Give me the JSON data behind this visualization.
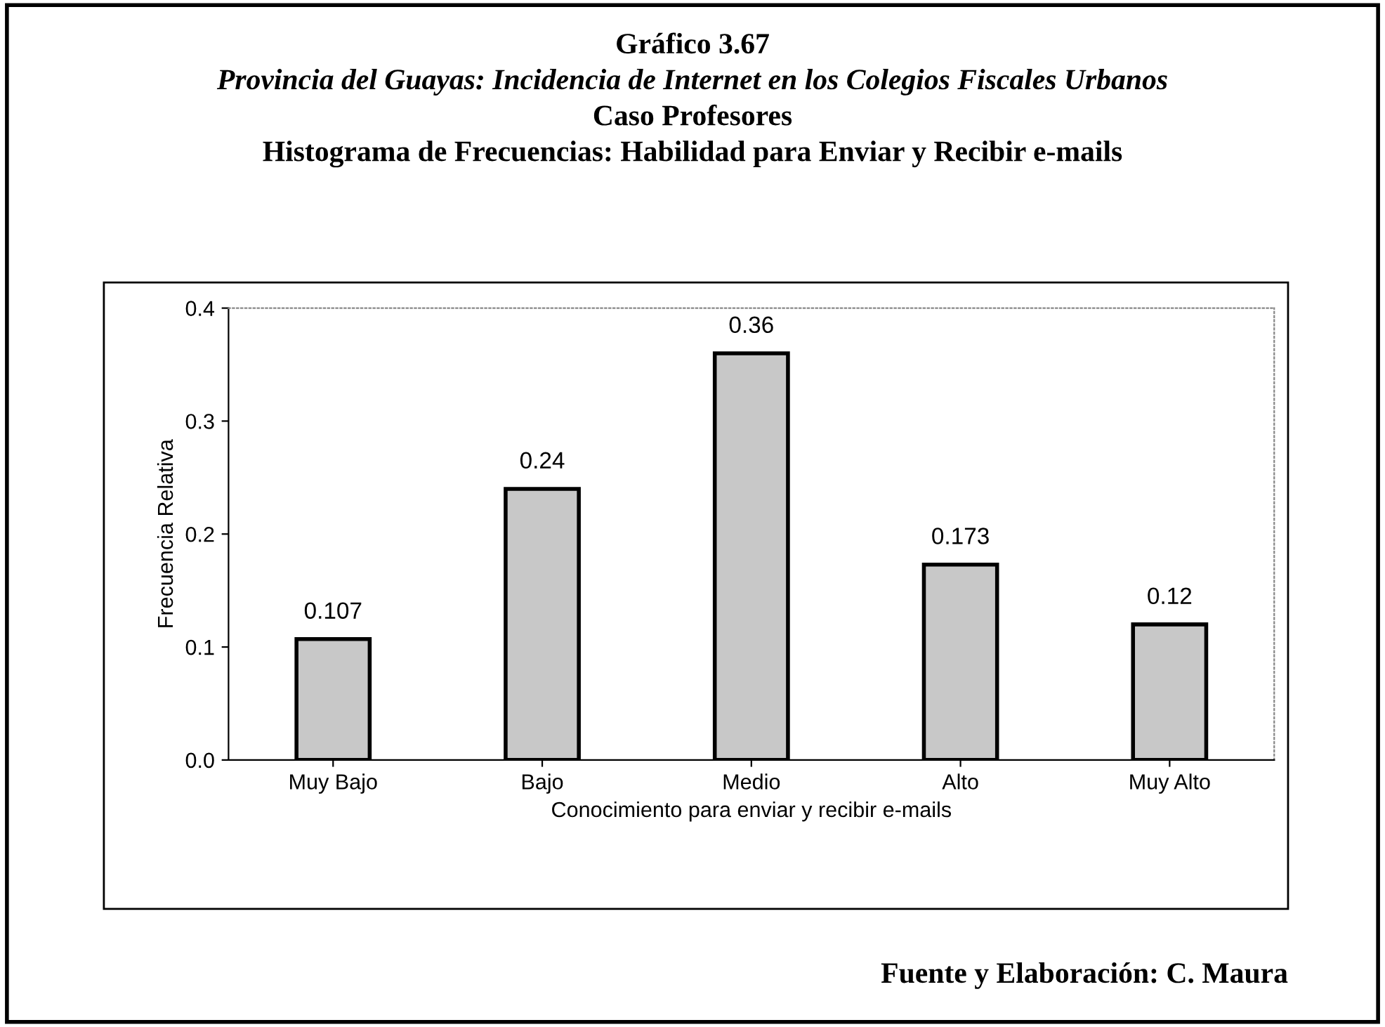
{
  "chart_data": {
    "type": "bar",
    "title": "Gráfico 3.67",
    "subtitle": "Provincia del Guayas: Incidencia de Internet en los Colegios Fiscales Urbanos\nCaso Profesores\nHistograma de Frecuencias: Habilidad para Enviar y Recibir e-mails",
    "xlabel": "Conocimiento para enviar y recibir e-mails",
    "ylabel": "Frecuencia Relativa",
    "categories": [
      "Muy Bajo",
      "Bajo",
      "Medio",
      "Alto",
      "Muy Alto"
    ],
    "values": [
      0.107,
      0.24,
      0.36,
      0.173,
      0.12
    ],
    "color": "#c8c8c8",
    "ylim": [
      0,
      0.4
    ],
    "yticks": [
      {
        "value": 0,
        "label": "0.0"
      },
      0.1,
      0.2,
      0.3,
      0.4
    ],
    "data_labels": true,
    "annotations": [
      "Fuente y Elaboración: C. Maura"
    ]
  }
}
